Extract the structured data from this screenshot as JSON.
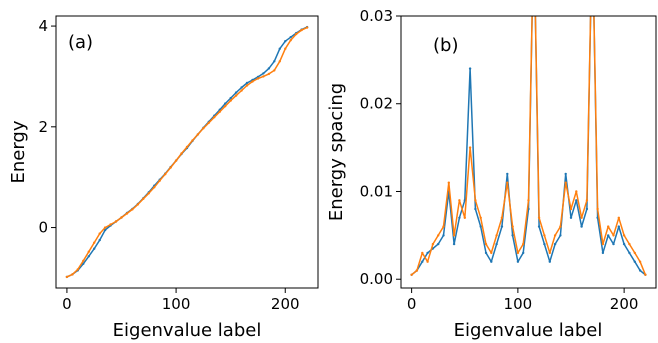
{
  "chart_data": [
    {
      "type": "line",
      "panel_label": "(a)",
      "xlabel": "Eigenvalue label",
      "ylabel": "Energy",
      "xlim": [
        -10,
        230
      ],
      "ylim": [
        -1.2,
        4.2
      ],
      "xticks": [
        0,
        100,
        200
      ],
      "yticks": [
        0,
        2,
        4
      ],
      "grid": false,
      "series": [
        {
          "color": "#1f77b4",
          "x": [
            0,
            5,
            10,
            15,
            20,
            25,
            30,
            35,
            40,
            45,
            50,
            55,
            60,
            65,
            70,
            75,
            80,
            85,
            90,
            95,
            100,
            105,
            110,
            115,
            120,
            125,
            130,
            135,
            140,
            145,
            150,
            155,
            160,
            165,
            170,
            175,
            180,
            185,
            190,
            195,
            200,
            205,
            210,
            215,
            220
          ],
          "y": [
            -0.98,
            -0.93,
            -0.85,
            -0.72,
            -0.57,
            -0.42,
            -0.25,
            -0.05,
            0.04,
            0.12,
            0.2,
            0.29,
            0.37,
            0.47,
            0.58,
            0.7,
            0.83,
            0.95,
            1.07,
            1.2,
            1.33,
            1.46,
            1.58,
            1.72,
            1.85,
            1.98,
            2.1,
            2.22,
            2.34,
            2.46,
            2.57,
            2.68,
            2.78,
            2.87,
            2.93,
            2.99,
            3.06,
            3.16,
            3.3,
            3.55,
            3.7,
            3.78,
            3.86,
            3.93,
            3.98
          ]
        },
        {
          "color": "#ff7f0e",
          "x": [
            0,
            5,
            10,
            15,
            20,
            25,
            30,
            35,
            40,
            45,
            50,
            55,
            60,
            65,
            70,
            75,
            80,
            85,
            90,
            95,
            100,
            105,
            110,
            115,
            120,
            125,
            130,
            135,
            140,
            145,
            150,
            155,
            160,
            165,
            170,
            175,
            180,
            185,
            190,
            195,
            200,
            205,
            210,
            215,
            220
          ],
          "y": [
            -0.98,
            -0.93,
            -0.83,
            -0.66,
            -0.48,
            -0.3,
            -0.12,
            0.0,
            0.06,
            0.12,
            0.2,
            0.28,
            0.36,
            0.46,
            0.57,
            0.68,
            0.8,
            0.93,
            1.06,
            1.19,
            1.33,
            1.47,
            1.6,
            1.73,
            1.85,
            1.97,
            2.08,
            2.19,
            2.3,
            2.41,
            2.52,
            2.62,
            2.72,
            2.82,
            2.9,
            2.96,
            3.0,
            3.05,
            3.12,
            3.3,
            3.55,
            3.72,
            3.84,
            3.92,
            3.97
          ]
        }
      ]
    },
    {
      "type": "line",
      "panel_label": "(b)",
      "xlabel": "Eigenvalue label",
      "ylabel": "Energy spacing",
      "xlim": [
        -10,
        230
      ],
      "ylim": [
        -0.001,
        0.03
      ],
      "xticks": [
        0,
        100,
        200
      ],
      "yticks": [
        0.0,
        0.01,
        0.02,
        0.03
      ],
      "ytick_labels": [
        "0.00",
        "0.01",
        "0.02",
        "0.03"
      ],
      "grid": false,
      "series": [
        {
          "color": "#1f77b4",
          "x": [
            0,
            5,
            10,
            15,
            20,
            25,
            30,
            35,
            40,
            45,
            50,
            55,
            60,
            65,
            70,
            75,
            80,
            85,
            90,
            95,
            100,
            105,
            110,
            115,
            120,
            125,
            130,
            135,
            140,
            145,
            150,
            155,
            160,
            165,
            170,
            175,
            180,
            185,
            190,
            195,
            200,
            205,
            210,
            215,
            220
          ],
          "y": [
            0.0005,
            0.001,
            0.002,
            0.003,
            0.0035,
            0.004,
            0.005,
            0.01,
            0.004,
            0.007,
            0.009,
            0.024,
            0.008,
            0.006,
            0.003,
            0.002,
            0.004,
            0.006,
            0.012,
            0.005,
            0.002,
            0.003,
            0.008,
            0.04,
            0.006,
            0.004,
            0.002,
            0.004,
            0.005,
            0.012,
            0.007,
            0.009,
            0.006,
            0.008,
            0.04,
            0.007,
            0.003,
            0.005,
            0.004,
            0.006,
            0.004,
            0.003,
            0.002,
            0.001,
            0.0005
          ]
        },
        {
          "color": "#ff7f0e",
          "x": [
            0,
            5,
            10,
            15,
            20,
            25,
            30,
            35,
            40,
            45,
            50,
            55,
            60,
            65,
            70,
            75,
            80,
            85,
            90,
            95,
            100,
            105,
            110,
            115,
            120,
            125,
            130,
            135,
            140,
            145,
            150,
            155,
            160,
            165,
            170,
            175,
            180,
            185,
            190,
            195,
            200,
            205,
            210,
            215,
            220
          ],
          "y": [
            0.0005,
            0.001,
            0.003,
            0.002,
            0.004,
            0.005,
            0.006,
            0.011,
            0.005,
            0.009,
            0.007,
            0.015,
            0.009,
            0.007,
            0.004,
            0.003,
            0.005,
            0.007,
            0.011,
            0.006,
            0.003,
            0.004,
            0.009,
            0.04,
            0.007,
            0.005,
            0.003,
            0.005,
            0.006,
            0.011,
            0.008,
            0.01,
            0.007,
            0.009,
            0.04,
            0.008,
            0.004,
            0.006,
            0.005,
            0.007,
            0.005,
            0.004,
            0.003,
            0.002,
            0.0005
          ]
        }
      ]
    }
  ]
}
